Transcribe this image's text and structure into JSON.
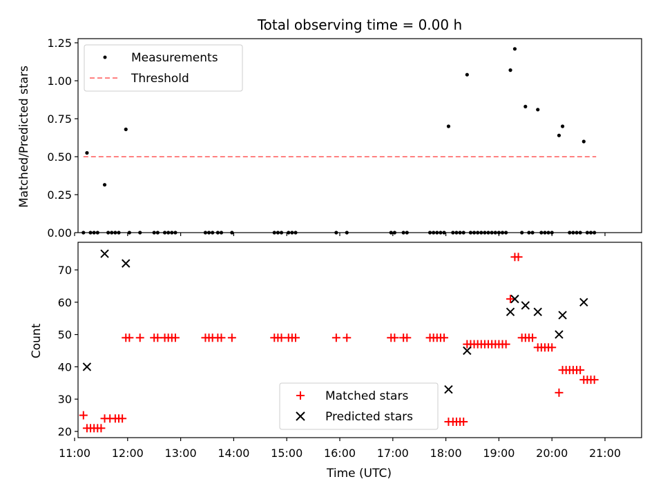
{
  "chart_data": [
    {
      "type": "scatter",
      "title": "Total observing time = 0.00 h",
      "xlabel": "",
      "ylabel": "Matched/Predicted stars",
      "xlim": [
        "11:00",
        "21:20"
      ],
      "ylim": [
        0,
        1.25
      ],
      "yticks": [
        "0.00",
        "0.25",
        "0.50",
        "0.75",
        "1.00",
        "1.25"
      ],
      "grid": false,
      "legend_position": "top-left",
      "threshold": {
        "name": "Threshold",
        "value": 0.5,
        "x_range": [
          "11:10",
          "20:50"
        ],
        "color": "#ff8080",
        "style": "dashed"
      },
      "series": [
        {
          "name": "Measurements",
          "marker": "dot",
          "color": "#000000",
          "points": [
            [
              "11:10",
              0
            ],
            [
              "11:14",
              0.525
            ],
            [
              "11:18",
              0
            ],
            [
              "11:22",
              0
            ],
            [
              "11:26",
              0
            ],
            [
              "11:34",
              0.315
            ],
            [
              "11:38",
              0
            ],
            [
              "11:42",
              0
            ],
            [
              "11:46",
              0
            ],
            [
              "11:50",
              0
            ],
            [
              "11:58",
              0.68
            ],
            [
              "12:02",
              0
            ],
            [
              "12:14",
              0
            ],
            [
              "12:30",
              0
            ],
            [
              "12:34",
              0
            ],
            [
              "12:42",
              0
            ],
            [
              "12:46",
              0
            ],
            [
              "12:50",
              0
            ],
            [
              "12:54",
              0
            ],
            [
              "13:28",
              0
            ],
            [
              "13:32",
              0
            ],
            [
              "13:36",
              0
            ],
            [
              "13:42",
              0
            ],
            [
              "13:46",
              0
            ],
            [
              "13:58",
              0
            ],
            [
              "14:46",
              0
            ],
            [
              "14:50",
              0
            ],
            [
              "14:54",
              0
            ],
            [
              "15:02",
              0
            ],
            [
              "15:06",
              0
            ],
            [
              "15:10",
              0
            ],
            [
              "15:56",
              0
            ],
            [
              "16:08",
              0
            ],
            [
              "16:58",
              0
            ],
            [
              "17:02",
              0
            ],
            [
              "17:12",
              0
            ],
            [
              "17:16",
              0
            ],
            [
              "17:42",
              0
            ],
            [
              "17:46",
              0
            ],
            [
              "17:50",
              0
            ],
            [
              "17:54",
              0
            ],
            [
              "17:58",
              0
            ],
            [
              "18:03",
              0.7
            ],
            [
              "18:08",
              0
            ],
            [
              "18:12",
              0
            ],
            [
              "18:16",
              0
            ],
            [
              "18:20",
              0
            ],
            [
              "18:24",
              1.04
            ],
            [
              "18:28",
              0
            ],
            [
              "18:32",
              0
            ],
            [
              "18:36",
              0
            ],
            [
              "18:40",
              0
            ],
            [
              "18:44",
              0
            ],
            [
              "18:48",
              0
            ],
            [
              "18:52",
              0
            ],
            [
              "18:56",
              0
            ],
            [
              "19:00",
              0
            ],
            [
              "19:04",
              0
            ],
            [
              "19:08",
              0
            ],
            [
              "19:13",
              1.07
            ],
            [
              "19:18",
              1.21
            ],
            [
              "19:26",
              0
            ],
            [
              "19:30",
              0.83
            ],
            [
              "19:34",
              0
            ],
            [
              "19:38",
              0
            ],
            [
              "19:44",
              0.81
            ],
            [
              "19:48",
              0
            ],
            [
              "19:52",
              0
            ],
            [
              "19:56",
              0
            ],
            [
              "20:00",
              0
            ],
            [
              "20:08",
              0.64
            ],
            [
              "20:12",
              0.7
            ],
            [
              "20:20",
              0
            ],
            [
              "20:24",
              0
            ],
            [
              "20:28",
              0
            ],
            [
              "20:32",
              0
            ],
            [
              "20:36",
              0.6
            ],
            [
              "20:40",
              0
            ],
            [
              "20:44",
              0
            ],
            [
              "20:48",
              0
            ]
          ]
        }
      ]
    },
    {
      "type": "scatter",
      "title": "",
      "xlabel": "Time (UTC)",
      "ylabel": "Count",
      "xlim": [
        "11:00",
        "21:20"
      ],
      "ylim": [
        18,
        78
      ],
      "yticks": [
        "20",
        "30",
        "40",
        "50",
        "60",
        "70"
      ],
      "xticks": [
        "11:00",
        "12:00",
        "13:00",
        "14:00",
        "15:00",
        "16:00",
        "17:00",
        "18:00",
        "19:00",
        "20:00",
        "21:00"
      ],
      "grid": false,
      "legend_position": "lower-center",
      "series": [
        {
          "name": "Matched stars",
          "marker": "plus",
          "color": "#ff0000",
          "points": [
            [
              "11:10",
              25
            ],
            [
              "11:14",
              21
            ],
            [
              "11:18",
              21
            ],
            [
              "11:22",
              21
            ],
            [
              "11:26",
              21
            ],
            [
              "11:30",
              21
            ],
            [
              "11:34",
              24
            ],
            [
              "11:40",
              24
            ],
            [
              "11:46",
              24
            ],
            [
              "11:50",
              24
            ],
            [
              "11:54",
              24
            ],
            [
              "11:58",
              49
            ],
            [
              "12:02",
              49
            ],
            [
              "12:14",
              49
            ],
            [
              "12:30",
              49
            ],
            [
              "12:34",
              49
            ],
            [
              "12:42",
              49
            ],
            [
              "12:46",
              49
            ],
            [
              "12:50",
              49
            ],
            [
              "12:54",
              49
            ],
            [
              "13:28",
              49
            ],
            [
              "13:32",
              49
            ],
            [
              "13:36",
              49
            ],
            [
              "13:42",
              49
            ],
            [
              "13:46",
              49
            ],
            [
              "13:58",
              49
            ],
            [
              "14:46",
              49
            ],
            [
              "14:50",
              49
            ],
            [
              "14:54",
              49
            ],
            [
              "15:02",
              49
            ],
            [
              "15:06",
              49
            ],
            [
              "15:10",
              49
            ],
            [
              "15:56",
              49
            ],
            [
              "16:08",
              49
            ],
            [
              "16:58",
              49
            ],
            [
              "17:02",
              49
            ],
            [
              "17:12",
              49
            ],
            [
              "17:16",
              49
            ],
            [
              "17:42",
              49
            ],
            [
              "17:46",
              49
            ],
            [
              "17:50",
              49
            ],
            [
              "17:54",
              49
            ],
            [
              "17:58",
              49
            ],
            [
              "18:03",
              23
            ],
            [
              "18:08",
              23
            ],
            [
              "18:12",
              23
            ],
            [
              "18:16",
              23
            ],
            [
              "18:20",
              23
            ],
            [
              "18:24",
              47
            ],
            [
              "18:28",
              47
            ],
            [
              "18:32",
              47
            ],
            [
              "18:36",
              47
            ],
            [
              "18:40",
              47
            ],
            [
              "18:44",
              47
            ],
            [
              "18:48",
              47
            ],
            [
              "18:52",
              47
            ],
            [
              "18:56",
              47
            ],
            [
              "19:00",
              47
            ],
            [
              "19:04",
              47
            ],
            [
              "19:08",
              47
            ],
            [
              "19:13",
              61
            ],
            [
              "19:18",
              74
            ],
            [
              "19:22",
              74
            ],
            [
              "19:26",
              49
            ],
            [
              "19:30",
              49
            ],
            [
              "19:34",
              49
            ],
            [
              "19:38",
              49
            ],
            [
              "19:44",
              46
            ],
            [
              "19:48",
              46
            ],
            [
              "19:52",
              46
            ],
            [
              "19:56",
              46
            ],
            [
              "20:00",
              46
            ],
            [
              "20:08",
              32
            ],
            [
              "20:12",
              39
            ],
            [
              "20:16",
              39
            ],
            [
              "20:20",
              39
            ],
            [
              "20:24",
              39
            ],
            [
              "20:28",
              39
            ],
            [
              "20:32",
              39
            ],
            [
              "20:36",
              36
            ],
            [
              "20:40",
              36
            ],
            [
              "20:44",
              36
            ],
            [
              "20:48",
              36
            ]
          ]
        },
        {
          "name": "Predicted stars",
          "marker": "x",
          "color": "#000000",
          "points": [
            [
              "11:14",
              40
            ],
            [
              "11:34",
              75
            ],
            [
              "11:58",
              72
            ],
            [
              "18:03",
              33
            ],
            [
              "18:24",
              45
            ],
            [
              "19:13",
              57
            ],
            [
              "19:18",
              61
            ],
            [
              "19:30",
              59
            ],
            [
              "19:44",
              57
            ],
            [
              "20:08",
              50
            ],
            [
              "20:12",
              56
            ],
            [
              "20:36",
              60
            ]
          ]
        }
      ]
    }
  ]
}
